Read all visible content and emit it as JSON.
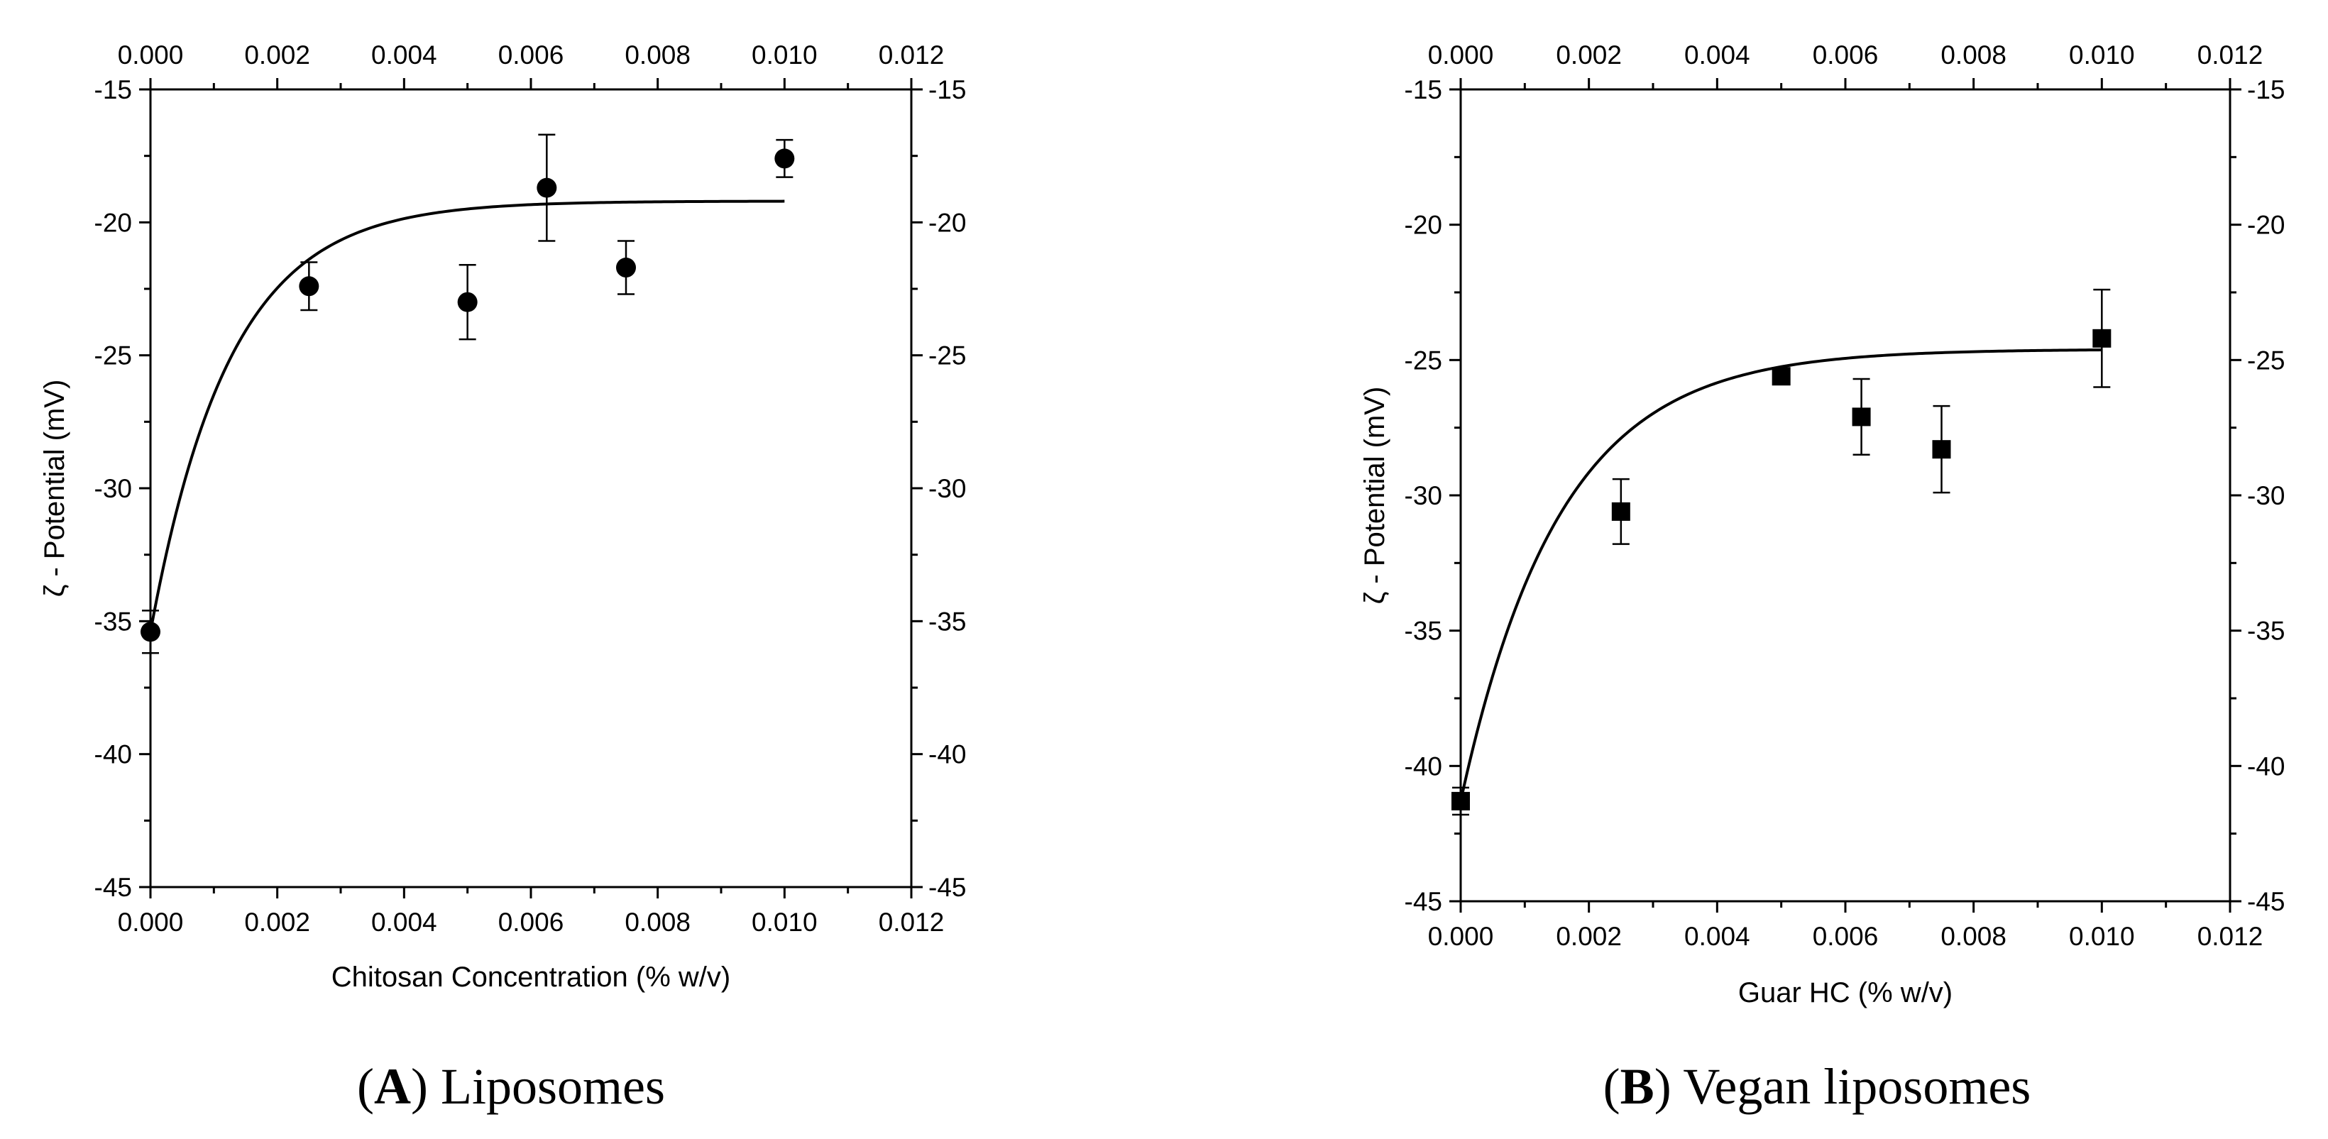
{
  "chart_data": [
    {
      "type": "scatter",
      "marker": "circle",
      "caption": {
        "open": "(",
        "letter": "A",
        "close": ")",
        "text": " Liposomes"
      },
      "xlabel": "Chitosan Concentration (% w/v)",
      "ylabel": "ζ - Potential (mV)",
      "xlim": [
        0,
        0.012
      ],
      "ylim": [
        -45,
        -15
      ],
      "xticks": [
        "0.000",
        "0.002",
        "0.004",
        "0.006",
        "0.008",
        "0.010",
        "0.012"
      ],
      "yticks": [
        "-15",
        "-20",
        "-25",
        "-30",
        "-35",
        "-40",
        "-45"
      ],
      "points": [
        {
          "x": 0.0,
          "y": -35.4,
          "err": 0.8
        },
        {
          "x": 0.0025,
          "y": -22.4,
          "err": 0.9
        },
        {
          "x": 0.005,
          "y": -23.0,
          "err": 1.4
        },
        {
          "x": 0.00625,
          "y": -18.7,
          "err": 2.0
        },
        {
          "x": 0.0075,
          "y": -21.7,
          "err": 1.0
        },
        {
          "x": 0.01,
          "y": -17.6,
          "err": 0.7
        }
      ],
      "fit": {
        "form": "exponential",
        "y0": -35.4,
        "plateau": -19.2,
        "k": 800,
        "xmax": 0.01
      }
    },
    {
      "type": "scatter",
      "marker": "square",
      "caption": {
        "open": "(",
        "letter": "B",
        "close": ")",
        "text": " Vegan liposomes"
      },
      "xlabel": "Guar HC (% w/v)",
      "ylabel": "ζ - Potential (mV)",
      "xlim": [
        0,
        0.012
      ],
      "ylim": [
        -45,
        -15
      ],
      "xticks": [
        "0.000",
        "0.002",
        "0.004",
        "0.006",
        "0.008",
        "0.010",
        "0.012"
      ],
      "yticks": [
        "-15",
        "-20",
        "-25",
        "-30",
        "-35",
        "-40",
        "-45"
      ],
      "points": [
        {
          "x": 0.0,
          "y": -41.3,
          "err": 0.5
        },
        {
          "x": 0.0025,
          "y": -30.6,
          "err": 1.2
        },
        {
          "x": 0.005,
          "y": -25.6,
          "err": 0.2
        },
        {
          "x": 0.00625,
          "y": -27.1,
          "err": 1.4
        },
        {
          "x": 0.0075,
          "y": -28.3,
          "err": 1.6
        },
        {
          "x": 0.01,
          "y": -24.2,
          "err": 1.8
        }
      ],
      "fit": {
        "form": "exponential",
        "y0": -41.3,
        "plateau": -24.6,
        "k": 650,
        "xmax": 0.01
      }
    }
  ]
}
